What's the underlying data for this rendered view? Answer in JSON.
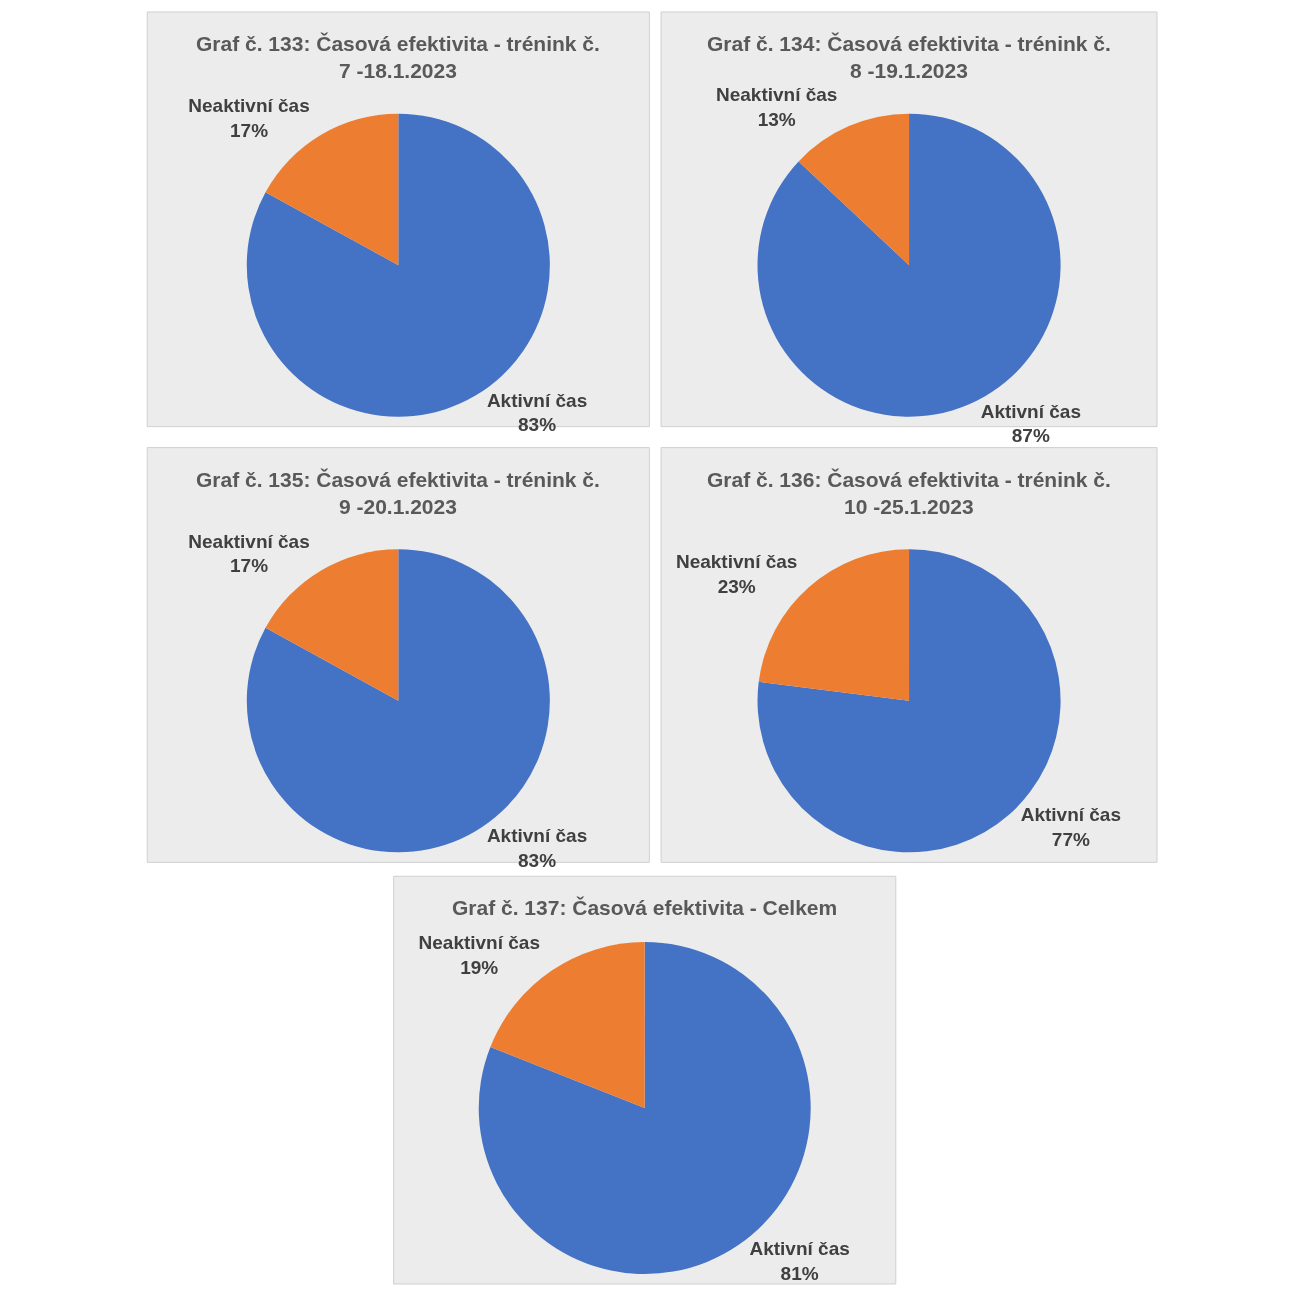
{
  "chart_data": [
    {
      "type": "pie",
      "title": "Graf č. 133: Časová efektivita - trénink č. 7 -18.1.2023",
      "categories": [
        "Aktivní čas",
        "Neaktivní čas"
      ],
      "values": [
        83,
        17
      ],
      "value_labels": [
        "83%",
        "17%"
      ],
      "colors": [
        "#4472c4",
        "#ed7d31"
      ],
      "legend": false
    },
    {
      "type": "pie",
      "title": "Graf č. 134: Časová efektivita - trénink č. 8 -19.1.2023",
      "categories": [
        "Aktivní čas",
        "Neaktivní čas"
      ],
      "values": [
        87,
        13
      ],
      "value_labels": [
        "87%",
        "13%"
      ],
      "colors": [
        "#4472c4",
        "#ed7d31"
      ],
      "legend": false
    },
    {
      "type": "pie",
      "title": "Graf č. 135: Časová efektivita - trénink č. 9 -20.1.2023",
      "categories": [
        "Aktivní čas",
        "Neaktivní čas"
      ],
      "values": [
        83,
        17
      ],
      "value_labels": [
        "83%",
        "17%"
      ],
      "colors": [
        "#4472c4",
        "#ed7d31"
      ],
      "legend": false
    },
    {
      "type": "pie",
      "title": "Graf č. 136: Časová efektivita - trénink č. 10 -25.1.2023",
      "categories": [
        "Aktivní čas",
        "Neaktivní čas"
      ],
      "values": [
        77,
        23
      ],
      "value_labels": [
        "77%",
        "23%"
      ],
      "colors": [
        "#4472c4",
        "#ed7d31"
      ],
      "legend": false
    },
    {
      "type": "pie",
      "title": "Graf č. 137: Časová efektivita - Celkem",
      "categories": [
        "Aktivní čas",
        "Neaktivní čas"
      ],
      "values": [
        81,
        19
      ],
      "value_labels": [
        "81%",
        "19%"
      ],
      "colors": [
        "#4472c4",
        "#ed7d31"
      ],
      "legend": false
    }
  ]
}
